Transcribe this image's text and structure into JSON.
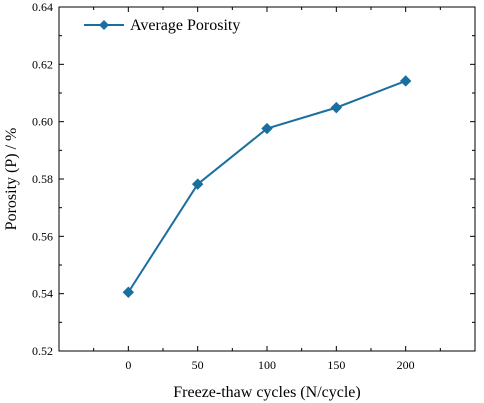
{
  "chart_data": {
    "type": "line",
    "title": "",
    "xlabel": "Freeze-thaw cycles (N/cycle)",
    "ylabel": "Porosity (P) / %",
    "x": [
      0,
      50,
      100,
      150,
      200
    ],
    "xticks": [
      "0",
      "50",
      "100",
      "150",
      "200"
    ],
    "xlim": [
      -50,
      250
    ],
    "ylim": [
      0.52,
      0.64
    ],
    "yticks": [
      "0.52",
      "0.54",
      "0.56",
      "0.58",
      "0.60",
      "0.62",
      "0.64"
    ],
    "series": [
      {
        "name": "Average Porosity",
        "values": [
          0.5405,
          0.5782,
          0.5976,
          0.6049,
          0.6142
        ],
        "color": "#1a6fa0",
        "marker": "diamond"
      }
    ],
    "legend_position": "top-left",
    "grid": false
  }
}
